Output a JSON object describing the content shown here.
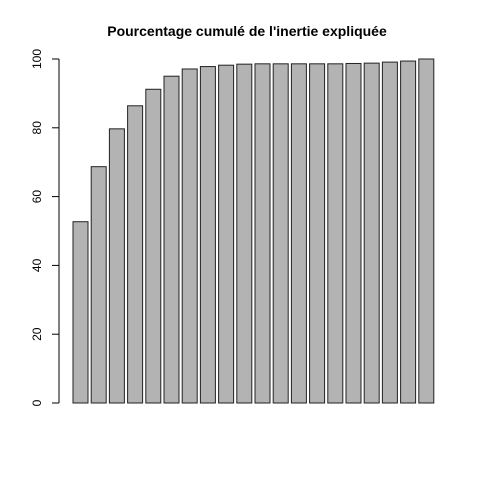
{
  "chart_data": {
    "type": "bar",
    "title": "Pourcentage cumulé de l'inertie expliquée",
    "xlabel": "",
    "ylabel": "",
    "ylim": [
      0,
      100
    ],
    "yticks": [
      "0",
      "20",
      "40",
      "60",
      "80",
      "100"
    ],
    "bar_color": "#b3b3b3",
    "grid": false,
    "values": [
      52.7,
      68.7,
      79.7,
      86.4,
      91.2,
      95.0,
      97.1,
      97.8,
      98.2,
      98.5,
      98.6,
      98.6,
      98.6,
      98.6,
      98.6,
      98.7,
      98.8,
      99.1,
      99.4,
      100.0
    ]
  }
}
